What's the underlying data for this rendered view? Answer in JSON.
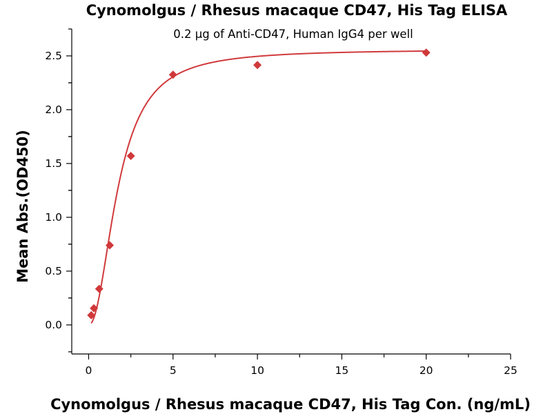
{
  "chart_data": {
    "type": "scatter",
    "title": "Cynomolgus / Rhesus macaque CD47, His Tag ELISA",
    "subtitle": "0.2 µg of Anti-CD47, Human IgG4 per well",
    "xlabel": "Cynomolgus / Rhesus macaque CD47, His Tag Con. (ng/mL)",
    "ylabel": "Mean Abs.(OD450)",
    "xlim": [
      -1,
      25
    ],
    "ylim": [
      -0.27,
      2.75
    ],
    "x_ticks": [
      0,
      5,
      10,
      15,
      20,
      25
    ],
    "y_ticks": [
      0.0,
      0.5,
      1.0,
      1.5,
      2.0,
      2.5
    ],
    "x_tick_labels": [
      "0",
      "5",
      "10",
      "15",
      "20",
      "25"
    ],
    "y_tick_labels": [
      "0.0",
      "0.5",
      "1.0",
      "1.5",
      "2.0",
      "2.5"
    ],
    "series": [
      {
        "marker": "diamond",
        "color": "#d0393b",
        "x": [
          0.156,
          0.3125,
          0.625,
          1.25,
          2.5,
          5,
          10,
          20
        ],
        "y": [
          0.09,
          0.155,
          0.335,
          0.74,
          1.57,
          2.325,
          2.415,
          2.53
        ]
      }
    ],
    "fit_curve": {
      "type": "line",
      "color": "#d0393b",
      "model": "4PL",
      "params": {
        "bottom": 0.0,
        "top": 2.56,
        "ec50": 1.75,
        "hill": 2.1
      }
    },
    "grid": false,
    "legend": "none"
  }
}
